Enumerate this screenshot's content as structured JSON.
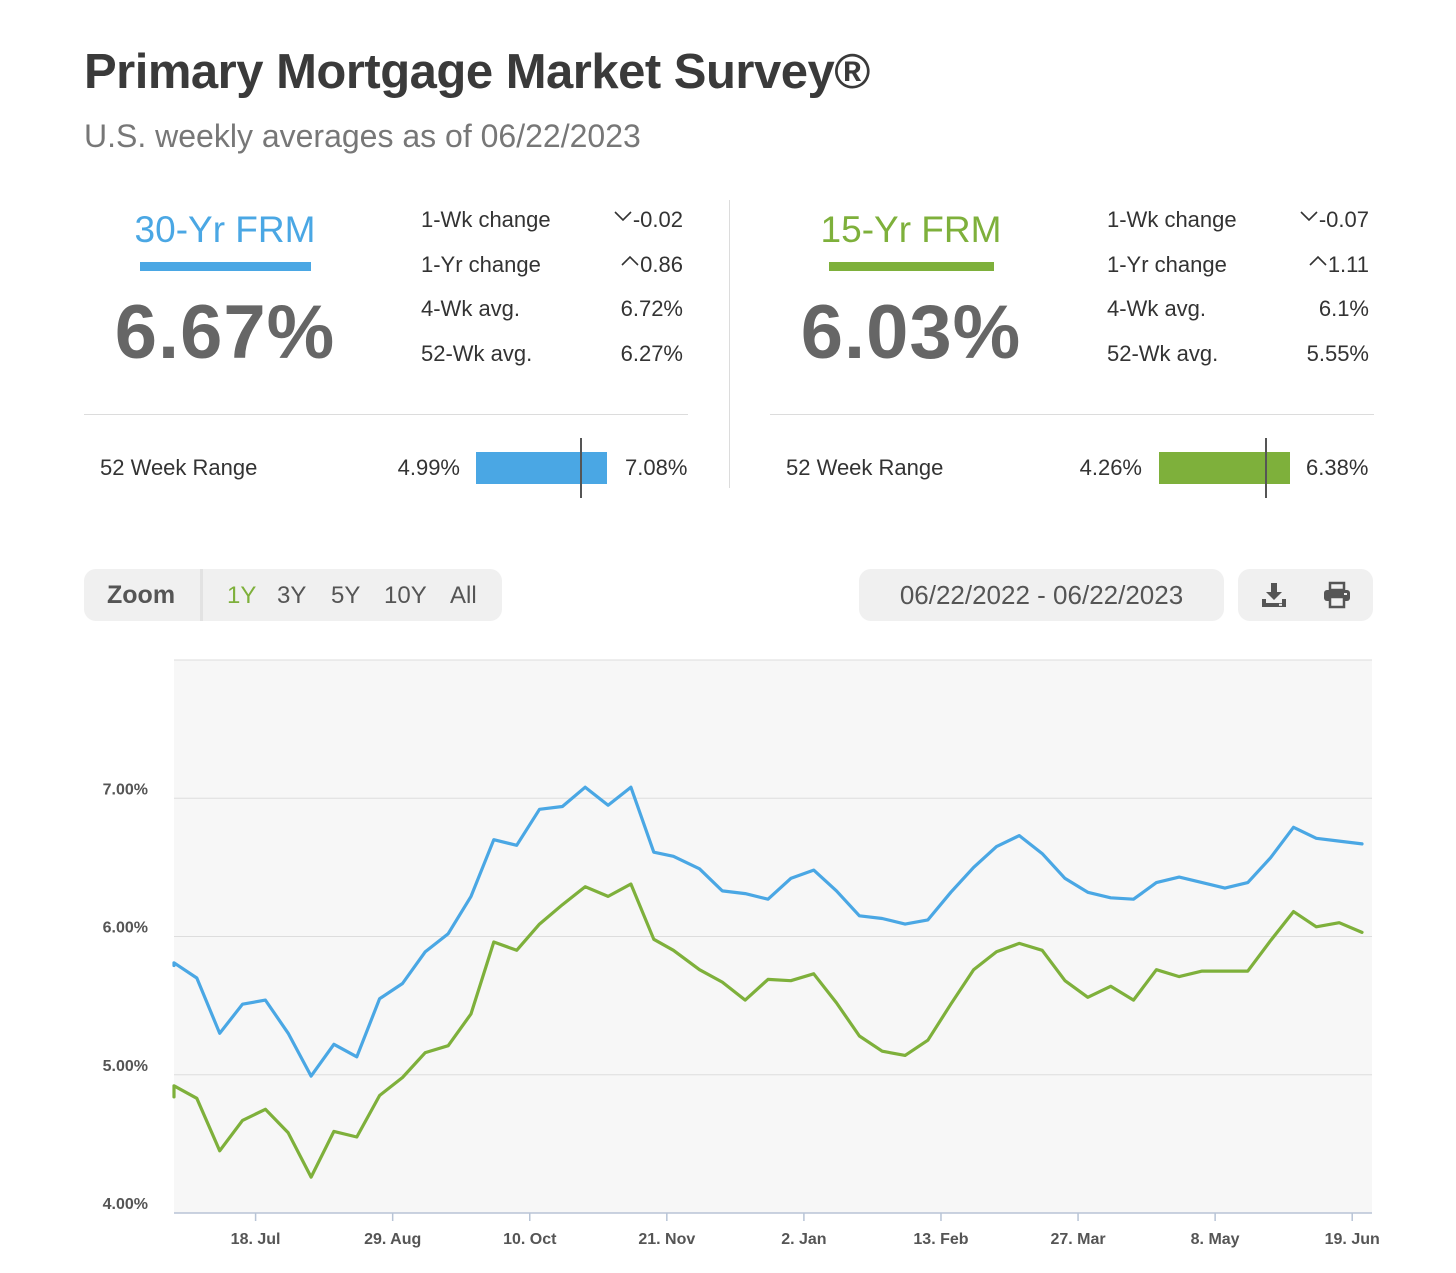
{
  "header": {
    "title": "Primary Mortgage Market Survey®",
    "subtitle": "U.S. weekly averages as of 06/22/2023"
  },
  "rates": [
    {
      "name": "30-Yr FRM",
      "value": "6.67%",
      "color": "#4aa7e4",
      "stats": [
        {
          "label": "1-Wk change",
          "value": "-0.02",
          "arrow": "down"
        },
        {
          "label": "1-Yr change",
          "value": "0.86",
          "arrow": "up"
        },
        {
          "label": "4-Wk avg.",
          "value": "6.72%"
        },
        {
          "label": "52-Wk avg.",
          "value": "6.27%"
        }
      ],
      "range": {
        "label": "52 Week Range",
        "min": "4.99%",
        "max": "7.08%",
        "current_fraction": 0.8
      }
    },
    {
      "name": "15-Yr FRM",
      "value": "6.03%",
      "color": "#7eb03b",
      "stats": [
        {
          "label": "1-Wk change",
          "value": "-0.07",
          "arrow": "down"
        },
        {
          "label": "1-Yr change",
          "value": "1.11",
          "arrow": "up"
        },
        {
          "label": "4-Wk avg.",
          "value": "6.1%"
        },
        {
          "label": "52-Wk avg.",
          "value": "5.55%"
        }
      ],
      "range": {
        "label": "52 Week Range",
        "min": "4.26%",
        "max": "6.38%",
        "current_fraction": 0.82
      }
    }
  ],
  "controls": {
    "zoom_label": "Zoom",
    "zoom_options": [
      "1Y",
      "3Y",
      "5Y",
      "10Y",
      "All"
    ],
    "zoom_selected": "1Y",
    "date_range": "06/22/2022 - 06/22/2023",
    "icons": [
      "download-icon",
      "print-icon"
    ]
  },
  "chart_data": {
    "type": "line",
    "ylim": [
      4.0,
      8.0
    ],
    "y_ticks": [
      "4.00%",
      "5.00%",
      "6.00%",
      "7.00%"
    ],
    "y_tick_values": [
      4,
      5,
      6,
      7
    ],
    "x_range": [
      "2022-06-23",
      "2023-06-22"
    ],
    "x_ticks": [
      {
        "label": "18. Jul",
        "date": "2022-07-18"
      },
      {
        "label": "29. Aug",
        "date": "2022-08-29"
      },
      {
        "label": "10. Oct",
        "date": "2022-10-10"
      },
      {
        "label": "21. Nov",
        "date": "2022-11-21"
      },
      {
        "label": "2. Jan",
        "date": "2023-01-02"
      },
      {
        "label": "13. Feb",
        "date": "2023-02-13"
      },
      {
        "label": "27. Mar",
        "date": "2023-03-27"
      },
      {
        "label": "8. May",
        "date": "2023-05-08"
      },
      {
        "label": "19. Jun",
        "date": "2023-06-19"
      }
    ],
    "grid": true,
    "x": [
      "2022-06-23",
      "2022-06-30",
      "2022-07-07",
      "2022-07-14",
      "2022-07-21",
      "2022-07-28",
      "2022-08-04",
      "2022-08-11",
      "2022-08-18",
      "2022-08-25",
      "2022-09-01",
      "2022-09-08",
      "2022-09-15",
      "2022-09-22",
      "2022-09-29",
      "2022-10-06",
      "2022-10-13",
      "2022-10-20",
      "2022-10-27",
      "2022-11-03",
      "2022-11-10",
      "2022-11-17",
      "2022-11-23",
      "2022-12-01",
      "2022-12-08",
      "2022-12-15",
      "2022-12-22",
      "2022-12-29",
      "2023-01-05",
      "2023-01-12",
      "2023-01-19",
      "2023-01-26",
      "2023-02-02",
      "2023-02-09",
      "2023-02-16",
      "2023-02-23",
      "2023-03-02",
      "2023-03-09",
      "2023-03-16",
      "2023-03-23",
      "2023-03-30",
      "2023-04-06",
      "2023-04-13",
      "2023-04-20",
      "2023-04-27",
      "2023-05-04",
      "2023-05-11",
      "2023-05-18",
      "2023-05-25",
      "2023-06-01",
      "2023-06-08",
      "2023-06-15",
      "2023-06-22"
    ],
    "series": [
      {
        "name": "30-Yr FRM",
        "color": "#4aa7e4",
        "values": [
          5.81,
          5.7,
          5.3,
          5.51,
          5.54,
          5.3,
          4.99,
          5.22,
          5.13,
          5.55,
          5.66,
          5.89,
          6.02,
          6.29,
          6.7,
          6.66,
          6.92,
          6.94,
          7.08,
          6.95,
          7.08,
          6.61,
          6.58,
          6.49,
          6.33,
          6.31,
          6.27,
          6.42,
          6.48,
          6.33,
          6.15,
          6.13,
          6.09,
          6.12,
          6.32,
          6.5,
          6.65,
          6.73,
          6.6,
          6.42,
          6.32,
          6.28,
          6.27,
          6.39,
          6.43,
          6.39,
          6.35,
          6.39,
          6.57,
          6.79,
          6.71,
          6.69,
          6.67
        ]
      },
      {
        "name": "15-Yr FRM",
        "color": "#7eb03b",
        "values": [
          4.92,
          4.83,
          4.45,
          4.67,
          4.75,
          4.58,
          4.26,
          4.59,
          4.55,
          4.85,
          4.98,
          5.16,
          5.21,
          5.44,
          5.96,
          5.9,
          6.09,
          6.23,
          6.36,
          6.29,
          6.38,
          5.98,
          5.9,
          5.76,
          5.67,
          5.54,
          5.69,
          5.68,
          5.73,
          5.52,
          5.28,
          5.17,
          5.14,
          5.25,
          5.51,
          5.76,
          5.89,
          5.95,
          5.9,
          5.68,
          5.56,
          5.64,
          5.54,
          5.76,
          5.71,
          5.75,
          5.75,
          5.75,
          5.97,
          6.18,
          6.07,
          6.1,
          6.03
        ]
      }
    ]
  }
}
